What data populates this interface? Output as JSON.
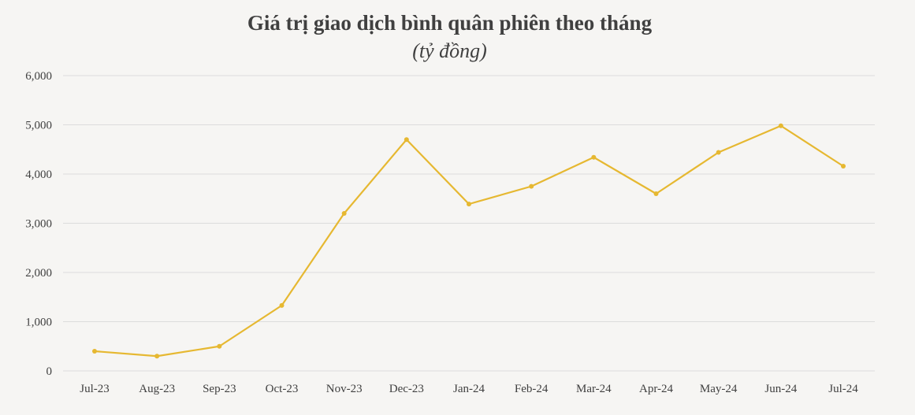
{
  "chart_data": {
    "type": "line",
    "title": "Giá trị giao dịch bình quân phiên theo tháng",
    "subtitle": "(tỷ đồng)",
    "categories": [
      "Jul-23",
      "Aug-23",
      "Sep-23",
      "Oct-23",
      "Nov-23",
      "Dec-23",
      "Jan-24",
      "Feb-24",
      "Mar-24",
      "Apr-24",
      "May-24",
      "Jun-24",
      "Jul-24"
    ],
    "series": [
      {
        "values": [
          400,
          300,
          500,
          1330,
          3200,
          4700,
          3390,
          3750,
          4340,
          3600,
          4440,
          4980,
          4160
        ]
      }
    ],
    "ylim": [
      0,
      6000
    ],
    "yticks": [
      0,
      1000,
      2000,
      3000,
      4000,
      5000,
      6000
    ],
    "ytick_labels": [
      "0",
      "1,000",
      "2,000",
      "3,000",
      "4,000",
      "5,000",
      "6,000"
    ],
    "grid": true,
    "line_color": "#e6b831",
    "grid_color": "#dcdcdc",
    "text_color": "#404040"
  }
}
